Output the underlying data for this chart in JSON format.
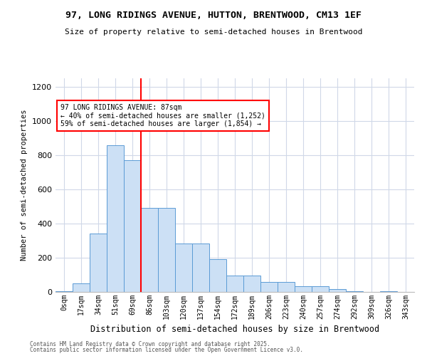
{
  "title1": "97, LONG RIDINGS AVENUE, HUTTON, BRENTWOOD, CM13 1EF",
  "title2": "Size of property relative to semi-detached houses in Brentwood",
  "xlabel": "Distribution of semi-detached houses by size in Brentwood",
  "ylabel": "Number of semi-detached properties",
  "bins": [
    "0sqm",
    "17sqm",
    "34sqm",
    "51sqm",
    "69sqm",
    "86sqm",
    "103sqm",
    "120sqm",
    "137sqm",
    "154sqm",
    "172sqm",
    "189sqm",
    "206sqm",
    "223sqm",
    "240sqm",
    "257sqm",
    "274sqm",
    "292sqm",
    "309sqm",
    "326sqm",
    "343sqm"
  ],
  "bar_values": [
    5,
    50,
    340,
    860,
    770,
    490,
    490,
    285,
    285,
    190,
    95,
    95,
    60,
    60,
    35,
    35,
    15,
    5,
    0,
    5,
    0
  ],
  "bar_color": "#cce0f5",
  "bar_edge_color": "#5b9bd5",
  "vline_color": "red",
  "annotation_title": "97 LONG RIDINGS AVENUE: 87sqm",
  "annotation_line1": "← 40% of semi-detached houses are smaller (1,252)",
  "annotation_line2": "59% of semi-detached houses are larger (1,854) →",
  "annotation_box_color": "white",
  "annotation_box_edge": "red",
  "ylim": [
    0,
    1250
  ],
  "yticks": [
    0,
    200,
    400,
    600,
    800,
    1000,
    1200
  ],
  "footer1": "Contains HM Land Registry data © Crown copyright and database right 2025.",
  "footer2": "Contains public sector information licensed under the Open Government Licence v3.0."
}
